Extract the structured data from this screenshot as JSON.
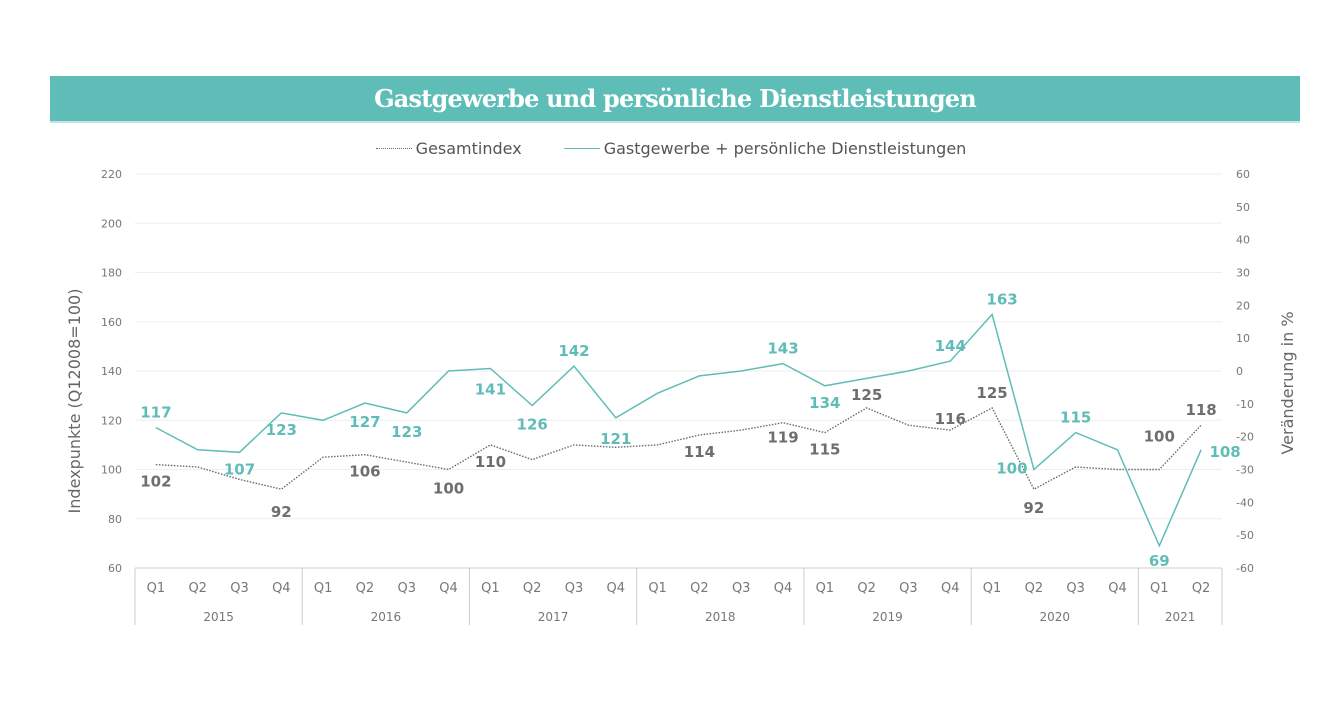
{
  "title": "Gastgewerbe und persönliche Dienstleistungen",
  "colors": {
    "banner": "#5fbdb8",
    "series_teal": "#5fbdb8",
    "series_gray": "#6b6b6b",
    "label_gray": "#6e6e6e",
    "grid": "#eeeeee",
    "axis_text": "#777777"
  },
  "chart_data": {
    "type": "line",
    "title": "Gastgewerbe und persönliche Dienstleistungen",
    "ylabel": "Indexpunkte (Q12008=100)",
    "y2label": "Veränderung in %",
    "ylim": [
      60,
      220
    ],
    "yticks": [
      60,
      80,
      100,
      120,
      140,
      160,
      180,
      200,
      220
    ],
    "y2lim": [
      -60,
      60
    ],
    "y2ticks": [
      -60,
      -50,
      -40,
      -30,
      -20,
      -10,
      0,
      10,
      20,
      30,
      40,
      50,
      60
    ],
    "grid": true,
    "legend_position": "top-center",
    "categories": [
      "Q1",
      "Q2",
      "Q3",
      "Q4",
      "Q1",
      "Q2",
      "Q3",
      "Q4",
      "Q1",
      "Q2",
      "Q3",
      "Q4",
      "Q1",
      "Q2",
      "Q3",
      "Q4",
      "Q1",
      "Q2",
      "Q3",
      "Q4",
      "Q1",
      "Q2",
      "Q3",
      "Q4",
      "Q1",
      "Q2"
    ],
    "quarter_labels": [
      "Q1",
      "Q2",
      "Q3",
      "Q4",
      "Q1",
      "Q2",
      "Q3",
      "Q4",
      "Q1",
      "Q2",
      "Q3",
      "Q4",
      "Q1",
      "Q2",
      "Q3",
      "Q4",
      "Q1",
      "Q2",
      "Q3",
      "Q4",
      "Q1",
      "Q2",
      "Q3",
      "Q4",
      "Q1",
      "Q2"
    ],
    "year_groups": [
      {
        "label": "2015",
        "count": 4
      },
      {
        "label": "2016",
        "count": 4
      },
      {
        "label": "2017",
        "count": 4
      },
      {
        "label": "2018",
        "count": 4
      },
      {
        "label": "2019",
        "count": 4
      },
      {
        "label": "2020",
        "count": 4
      },
      {
        "label": "2021",
        "count": 2
      }
    ],
    "series": [
      {
        "name": "Gesamtindex",
        "style": "dotted",
        "color": "#6b6b6b",
        "values": [
          102,
          101,
          96,
          92,
          105,
          106,
          103,
          100,
          110,
          104,
          110,
          109,
          110,
          114,
          116,
          119,
          115,
          125,
          118,
          116,
          125,
          92,
          101,
          100,
          100,
          118
        ],
        "labels": [
          {
            "index": 0,
            "text": "102"
          },
          {
            "index": 3,
            "text": "92"
          },
          {
            "index": 5,
            "text": "106"
          },
          {
            "index": 7,
            "text": "100"
          },
          {
            "index": 8,
            "text": "110"
          },
          {
            "index": 13,
            "text": "114"
          },
          {
            "index": 15,
            "text": "119"
          },
          {
            "index": 16,
            "text": "115"
          },
          {
            "index": 17,
            "text": "125"
          },
          {
            "index": 19,
            "text": "116"
          },
          {
            "index": 20,
            "text": "125"
          },
          {
            "index": 21,
            "text": "92"
          },
          {
            "index": 24,
            "text": "100"
          },
          {
            "index": 25,
            "text": "118"
          }
        ]
      },
      {
        "name": "Gastgewerbe + persönliche Dienstleistungen",
        "style": "solid",
        "color": "#5fbdb8",
        "values": [
          117,
          108,
          107,
          123,
          120,
          127,
          123,
          140,
          141,
          126,
          142,
          121,
          131,
          138,
          140,
          143,
          134,
          137,
          140,
          144,
          163,
          100,
          115,
          108,
          69,
          108
        ],
        "labels": [
          {
            "index": 0,
            "text": "117"
          },
          {
            "index": 2,
            "text": "107"
          },
          {
            "index": 3,
            "text": "123"
          },
          {
            "index": 5,
            "text": "127"
          },
          {
            "index": 6,
            "text": "123"
          },
          {
            "index": 8,
            "text": "141"
          },
          {
            "index": 9,
            "text": "126"
          },
          {
            "index": 10,
            "text": "142"
          },
          {
            "index": 11,
            "text": "121"
          },
          {
            "index": 15,
            "text": "143"
          },
          {
            "index": 16,
            "text": "134"
          },
          {
            "index": 19,
            "text": "144"
          },
          {
            "index": 20,
            "text": "163"
          },
          {
            "index": 21,
            "text": "100"
          },
          {
            "index": 22,
            "text": "115"
          },
          {
            "index": 24,
            "text": "69"
          },
          {
            "index": 25,
            "text": "108"
          }
        ]
      }
    ]
  },
  "legend": {
    "items": [
      {
        "label": "Gesamtindex",
        "icon": "dotted-line-icon"
      },
      {
        "label": "Gastgewerbe + persönliche Dienstleistungen",
        "icon": "solid-line-icon"
      }
    ]
  }
}
